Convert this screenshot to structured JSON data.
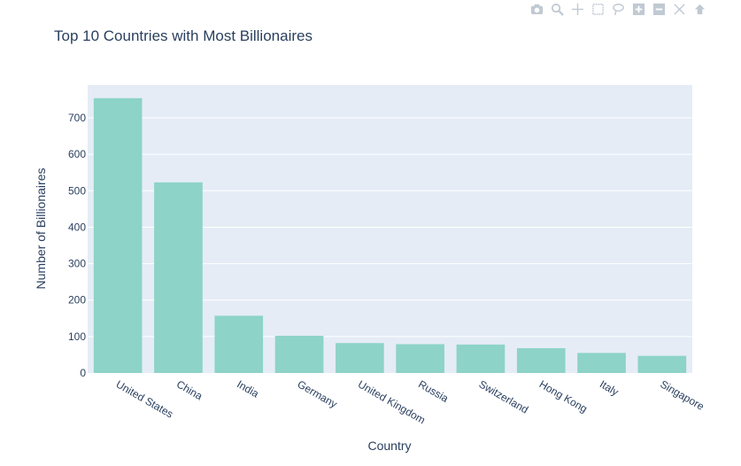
{
  "chart_data": {
    "type": "bar",
    "title": "Top 10 Countries with Most Billionaires",
    "xlabel": "Country",
    "ylabel": "Number of Billionaires",
    "categories": [
      "United States",
      "China",
      "India",
      "Germany",
      "United Kingdom",
      "Russia",
      "Switzerland",
      "Hong Kong",
      "Italy",
      "Singapore"
    ],
    "values": [
      754,
      523,
      157,
      102,
      82,
      79,
      78,
      68,
      55,
      47
    ],
    "ylim": [
      0,
      790
    ],
    "yticks": [
      0,
      100,
      200,
      300,
      400,
      500,
      600,
      700
    ],
    "bar_color": "#8dd3c7",
    "plot_bg": "#e5ecf6",
    "grid": true,
    "legend": "none"
  },
  "modebar": {
    "icons": [
      "camera-icon",
      "zoom-icon",
      "pan-icon",
      "box-select-icon",
      "lasso-icon",
      "zoom-in-icon",
      "zoom-out-icon",
      "autoscale-icon",
      "reset-axes-icon"
    ]
  }
}
